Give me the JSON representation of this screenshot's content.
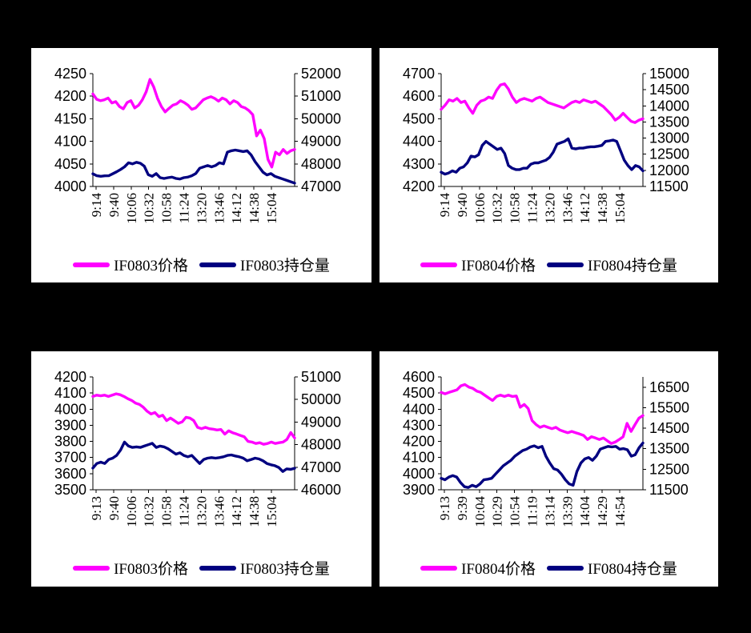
{
  "background_color": "#000000",
  "panel_background": "#FFFFFF",
  "colors": {
    "price": "#FF00FF",
    "position": "#000080",
    "axis": "#000000"
  },
  "chart_data": [
    {
      "type": "line",
      "position": "top-left",
      "x_tick_labels": [
        "9:14",
        "9:40",
        "10:06",
        "10:32",
        "10:58",
        "11:24",
        "13:20",
        "13:46",
        "14:12",
        "14:38",
        "15:04"
      ],
      "left_axis": {
        "min": 4000,
        "max": 4250,
        "tick_labels": [
          "4250",
          "4200",
          "4150",
          "4100",
          "4050",
          "4000"
        ]
      },
      "right_axis": {
        "min": 47000,
        "max": 52000,
        "tick_labels": [
          "52000",
          "51000",
          "50000",
          "49000",
          "48000",
          "47000"
        ]
      },
      "grid": false,
      "legend_position": "bottom",
      "series": [
        {
          "name": "IF0803价格",
          "axis": "left",
          "color": "price",
          "values": [
            4205,
            4193,
            4190,
            4192,
            4196,
            4185,
            4188,
            4177,
            4172,
            4186,
            4190,
            4174,
            4180,
            4192,
            4210,
            4237,
            4220,
            4195,
            4177,
            4165,
            4173,
            4180,
            4183,
            4190,
            4186,
            4180,
            4171,
            4174,
            4183,
            4192,
            4196,
            4199,
            4195,
            4189,
            4196,
            4192,
            4183,
            4190,
            4186,
            4177,
            4174,
            4168,
            4159,
            4112,
            4125,
            4106,
            4060,
            4043,
            4076,
            4070,
            4082,
            4073,
            4079,
            4082
          ]
        },
        {
          "name": "IF0803持仓量",
          "axis": "right",
          "color": "position",
          "values": [
            47560,
            47475,
            47450,
            47470,
            47475,
            47560,
            47650,
            47750,
            47870,
            48050,
            48000,
            48070,
            48030,
            47900,
            47520,
            47450,
            47570,
            47390,
            47355,
            47390,
            47415,
            47355,
            47330,
            47390,
            47415,
            47475,
            47570,
            47810,
            47870,
            47930,
            47870,
            47930,
            48050,
            48000,
            48520,
            48580,
            48615,
            48580,
            48545,
            48580,
            48400,
            48100,
            47870,
            47630,
            47510,
            47570,
            47450,
            47390,
            47330,
            47270,
            47210,
            47150
          ]
        }
      ]
    },
    {
      "type": "line",
      "position": "top-right",
      "x_tick_labels": [
        "9:14",
        "9:40",
        "10:06",
        "10:32",
        "10:58",
        "11:24",
        "13:20",
        "13:46",
        "14:12",
        "14:38",
        "15:04"
      ],
      "left_axis": {
        "min": 4200,
        "max": 4700,
        "tick_labels": [
          "4700",
          "4600",
          "4500",
          "4400",
          "4300",
          "4200"
        ]
      },
      "right_axis": {
        "min": 11500,
        "max": 15000,
        "tick_labels": [
          "15000",
          "14500",
          "14000",
          "13500",
          "13000",
          "12500",
          "12000",
          "11500"
        ]
      },
      "grid": false,
      "legend_position": "bottom",
      "series": [
        {
          "name": "IF0804价格",
          "axis": "left",
          "color": "price",
          "values": [
            4542,
            4560,
            4584,
            4578,
            4590,
            4572,
            4578,
            4548,
            4524,
            4560,
            4578,
            4584,
            4596,
            4590,
            4626,
            4650,
            4655,
            4632,
            4596,
            4572,
            4584,
            4590,
            4584,
            4578,
            4590,
            4596,
            4584,
            4572,
            4566,
            4560,
            4554,
            4548,
            4560,
            4572,
            4578,
            4572,
            4584,
            4578,
            4572,
            4578,
            4566,
            4554,
            4536,
            4518,
            4494,
            4506,
            4524,
            4506,
            4489,
            4483,
            4494,
            4500
          ]
        },
        {
          "name": "IF0804持仓量",
          "axis": "right",
          "color": "position",
          "values": [
            11941,
            11883,
            11916,
            11983,
            11941,
            12066,
            12107,
            12232,
            12440,
            12415,
            12482,
            12773,
            12897,
            12814,
            12731,
            12648,
            12690,
            12523,
            12149,
            12066,
            12024,
            12024,
            12066,
            12066,
            12191,
            12232,
            12232,
            12274,
            12315,
            12399,
            12565,
            12814,
            12856,
            12897,
            12980,
            12690,
            12665,
            12690,
            12690,
            12715,
            12731,
            12731,
            12748,
            12773,
            12897,
            12914,
            12939,
            12897,
            12606,
            12315,
            12149,
            12024,
            12149,
            12107,
            11983
          ]
        }
      ]
    },
    {
      "type": "line",
      "position": "bottom-left",
      "x_tick_labels": [
        "9:13",
        "9:40",
        "10:06",
        "10:32",
        "10:58",
        "11:24",
        "13:20",
        "13:46",
        "14:12",
        "14:38",
        "15:04"
      ],
      "left_axis": {
        "min": 3500,
        "max": 4200,
        "tick_labels": [
          "4200",
          "4100",
          "4000",
          "3900",
          "3800",
          "3700",
          "3600",
          "3500"
        ]
      },
      "right_axis": {
        "min": 46000,
        "max": 51000,
        "tick_labels": [
          "51000",
          "50000",
          "49000",
          "48000",
          "47000",
          "46000"
        ]
      },
      "grid": false,
      "legend_position": "bottom",
      "series": [
        {
          "name": "IF0803价格",
          "axis": "left",
          "color": "price",
          "values": [
            4079,
            4087,
            4083,
            4087,
            4079,
            4087,
            4095,
            4090,
            4079,
            4065,
            4054,
            4037,
            4029,
            4012,
            3987,
            3970,
            3979,
            3954,
            3962,
            3929,
            3945,
            3929,
            3912,
            3921,
            3950,
            3945,
            3929,
            3887,
            3879,
            3887,
            3879,
            3876,
            3871,
            3874,
            3845,
            3866,
            3854,
            3846,
            3837,
            3829,
            3800,
            3796,
            3787,
            3792,
            3782,
            3787,
            3796,
            3787,
            3792,
            3796,
            3812,
            3855,
            3821
          ]
        },
        {
          "name": "IF0803持仓量",
          "axis": "right",
          "color": "position",
          "values": [
            46960,
            47164,
            47224,
            47164,
            47342,
            47401,
            47520,
            47758,
            48114,
            47936,
            47877,
            47900,
            47877,
            47936,
            47995,
            48055,
            47877,
            47936,
            47900,
            47817,
            47698,
            47579,
            47639,
            47520,
            47461,
            47520,
            47342,
            47164,
            47342,
            47401,
            47425,
            47401,
            47425,
            47461,
            47520,
            47544,
            47496,
            47461,
            47401,
            47283,
            47342,
            47401,
            47366,
            47283,
            47164,
            47105,
            47069,
            46986,
            46808,
            46927,
            46903,
            46950
          ]
        }
      ]
    },
    {
      "type": "line",
      "position": "bottom-right",
      "x_tick_labels": [
        "9:13",
        "9:39",
        "10:04",
        "10:29",
        "10:54",
        "11:19",
        "13:14",
        "13:39",
        "14:04",
        "14:29",
        "14:54"
      ],
      "left_axis": {
        "min": 3900,
        "max": 4600,
        "tick_labels": [
          "4600",
          "4500",
          "4400",
          "4300",
          "4200",
          "4100",
          "4000",
          "3900"
        ]
      },
      "right_axis": {
        "min": 11500,
        "max": 17000,
        "tick_labels": [
          "16500",
          "15500",
          "14500",
          "13500",
          "12500",
          "11500"
        ]
      },
      "grid": false,
      "legend_position": "bottom",
      "series": [
        {
          "name": "IF0804价格",
          "axis": "left",
          "color": "price",
          "values": [
            4504,
            4495,
            4504,
            4512,
            4520,
            4545,
            4553,
            4537,
            4529,
            4512,
            4504,
            4487,
            4470,
            4454,
            4479,
            4487,
            4479,
            4487,
            4479,
            4482,
            4412,
            4429,
            4404,
            4329,
            4304,
            4287,
            4296,
            4287,
            4279,
            4287,
            4271,
            4262,
            4254,
            4262,
            4254,
            4246,
            4237,
            4212,
            4229,
            4221,
            4212,
            4221,
            4204,
            4187,
            4196,
            4212,
            4229,
            4312,
            4262,
            4304,
            4345,
            4360
          ]
        },
        {
          "name": "IF0804持仓量",
          "axis": "right",
          "color": "position",
          "values": [
            12056,
            11988,
            12122,
            12191,
            12122,
            11853,
            11650,
            11610,
            11717,
            11650,
            11785,
            11988,
            12015,
            12056,
            12259,
            12462,
            12665,
            12801,
            12935,
            13138,
            13276,
            13411,
            13479,
            13585,
            13641,
            13546,
            13614,
            13138,
            12801,
            12530,
            12462,
            12259,
            11988,
            11785,
            11717,
            12394,
            12801,
            13003,
            13071,
            12935,
            13138,
            13479,
            13546,
            13614,
            13585,
            13614,
            13479,
            13506,
            13452,
            13138,
            13206,
            13546,
            13777
          ]
        }
      ]
    }
  ]
}
